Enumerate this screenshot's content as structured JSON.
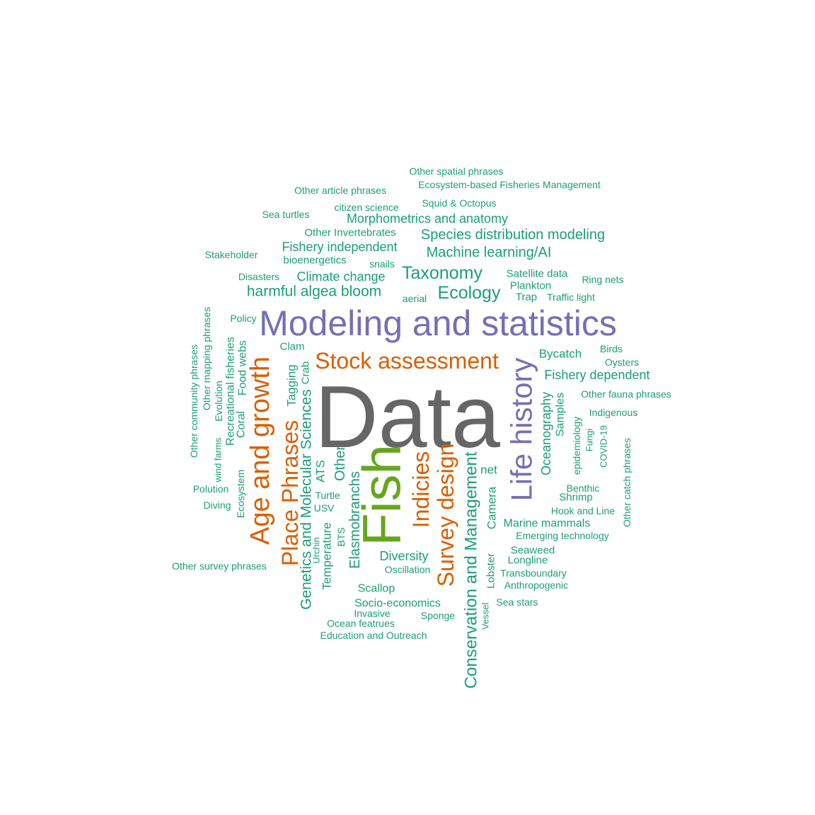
{
  "colors": {
    "teal": "#1b9e77",
    "orange": "#d95f02",
    "purple": "#7570b3",
    "green": "#66a61e",
    "gray": "#666666"
  },
  "words": [
    {
      "text": "Data",
      "color": "gray"
    },
    {
      "text": "Modeling and statistics",
      "color": "purple"
    },
    {
      "text": "Fish",
      "color": "green"
    },
    {
      "text": "Life history",
      "color": "purple"
    },
    {
      "text": "Age and growth",
      "color": "orange"
    },
    {
      "text": "Stock assessment",
      "color": "orange"
    },
    {
      "text": "Place Phrases",
      "color": "orange"
    },
    {
      "text": "Indicies",
      "color": "orange"
    },
    {
      "text": "Survey design",
      "color": "orange"
    },
    {
      "text": "Conservation and Management",
      "color": "teal"
    },
    {
      "text": "Genetics and Molecular Sciences",
      "color": "teal"
    },
    {
      "text": "Taxonomy",
      "color": "teal"
    },
    {
      "text": "Ecology",
      "color": "teal"
    },
    {
      "text": "harmful algea bloom",
      "color": "teal"
    },
    {
      "text": "Species distribution modeling",
      "color": "teal"
    },
    {
      "text": "Machine learning/AI",
      "color": "teal"
    },
    {
      "text": "Morphometrics and anatomy",
      "color": "teal"
    },
    {
      "text": "Fishery independent",
      "color": "teal"
    },
    {
      "text": "Climate change",
      "color": "teal"
    },
    {
      "text": "Fishery dependent",
      "color": "teal"
    },
    {
      "text": "Elasmobranchs",
      "color": "teal"
    },
    {
      "text": "Other",
      "color": "teal"
    },
    {
      "text": "Oceanography",
      "color": "teal"
    },
    {
      "text": "Diversity",
      "color": "teal"
    },
    {
      "text": "Bycatch",
      "color": "teal"
    },
    {
      "text": "Camera",
      "color": "teal"
    },
    {
      "text": "Temperature",
      "color": "teal"
    },
    {
      "text": "Socio-economics",
      "color": "teal"
    },
    {
      "text": "Tagging",
      "color": "teal"
    },
    {
      "text": "Recreational fisheries",
      "color": "teal"
    },
    {
      "text": "Marine mammals",
      "color": "teal"
    },
    {
      "text": "Food webs",
      "color": "teal"
    },
    {
      "text": "Coral",
      "color": "teal"
    },
    {
      "text": "ATS",
      "color": "teal"
    },
    {
      "text": "Samples",
      "color": "teal"
    },
    {
      "text": "Scallop",
      "color": "teal"
    },
    {
      "text": "Satellite data",
      "color": "teal"
    },
    {
      "text": "Seaweed",
      "color": "teal"
    },
    {
      "text": "Longline",
      "color": "teal"
    },
    {
      "text": "Shrimp",
      "color": "teal"
    },
    {
      "text": "net",
      "color": "teal"
    },
    {
      "text": "Plankton",
      "color": "teal"
    },
    {
      "text": "Trap",
      "color": "teal"
    },
    {
      "text": "Lobster",
      "color": "teal"
    },
    {
      "text": "Crab",
      "color": "teal"
    },
    {
      "text": "Clam",
      "color": "teal"
    },
    {
      "text": "epidemiology",
      "color": "teal"
    },
    {
      "text": "Evolution",
      "color": "teal"
    },
    {
      "text": "bioenergetics",
      "color": "teal"
    },
    {
      "text": "Hook and Line",
      "color": "teal"
    },
    {
      "text": "Emerging technology",
      "color": "teal"
    },
    {
      "text": "Other Invertebrates",
      "color": "teal"
    },
    {
      "text": "Squid & Octopus",
      "color": "teal"
    },
    {
      "text": "citizen science",
      "color": "teal"
    },
    {
      "text": "Turtle",
      "color": "teal"
    },
    {
      "text": "USV",
      "color": "teal"
    },
    {
      "text": "BTS",
      "color": "teal"
    },
    {
      "text": "Benthic",
      "color": "teal"
    },
    {
      "text": "Ecosystem",
      "color": "teal"
    },
    {
      "text": "snails",
      "color": "teal"
    },
    {
      "text": "aerial",
      "color": "teal"
    },
    {
      "text": "Oscillation",
      "color": "teal"
    },
    {
      "text": "Ocean featrues",
      "color": "teal"
    },
    {
      "text": "Education and Outreach",
      "color": "teal"
    },
    {
      "text": "Sponge",
      "color": "teal"
    },
    {
      "text": "Invasive",
      "color": "teal"
    },
    {
      "text": "Urchin",
      "color": "teal"
    },
    {
      "text": "Anthropogenic",
      "color": "teal"
    },
    {
      "text": "Transboundary",
      "color": "teal"
    },
    {
      "text": "Sea stars",
      "color": "teal"
    },
    {
      "text": "Vessel",
      "color": "teal"
    },
    {
      "text": "Fungi",
      "color": "teal"
    },
    {
      "text": "COVID-19",
      "color": "teal"
    },
    {
      "text": "Indigenous",
      "color": "teal"
    },
    {
      "text": "Other fauna phrases",
      "color": "teal"
    },
    {
      "text": "Oysters",
      "color": "teal"
    },
    {
      "text": "Birds",
      "color": "teal"
    },
    {
      "text": "Traffic light",
      "color": "teal"
    },
    {
      "text": "Ring nets",
      "color": "teal"
    },
    {
      "text": "Other catch phrases",
      "color": "teal"
    },
    {
      "text": "Other spatial phrases",
      "color": "teal"
    },
    {
      "text": "Ecosystem-based Fisheries Management",
      "color": "teal"
    },
    {
      "text": "Other article phrases",
      "color": "teal"
    },
    {
      "text": "Sea turtles",
      "color": "teal"
    },
    {
      "text": "Stakeholder",
      "color": "teal"
    },
    {
      "text": "Disasters",
      "color": "teal"
    },
    {
      "text": "Policy",
      "color": "teal"
    },
    {
      "text": "Other mapping phrases",
      "color": "teal"
    },
    {
      "text": "Other community phrases",
      "color": "teal"
    },
    {
      "text": "wind farms",
      "color": "teal"
    },
    {
      "text": "Polution",
      "color": "teal"
    },
    {
      "text": "Diving",
      "color": "teal"
    },
    {
      "text": "Other survey phrases",
      "color": "teal"
    }
  ]
}
